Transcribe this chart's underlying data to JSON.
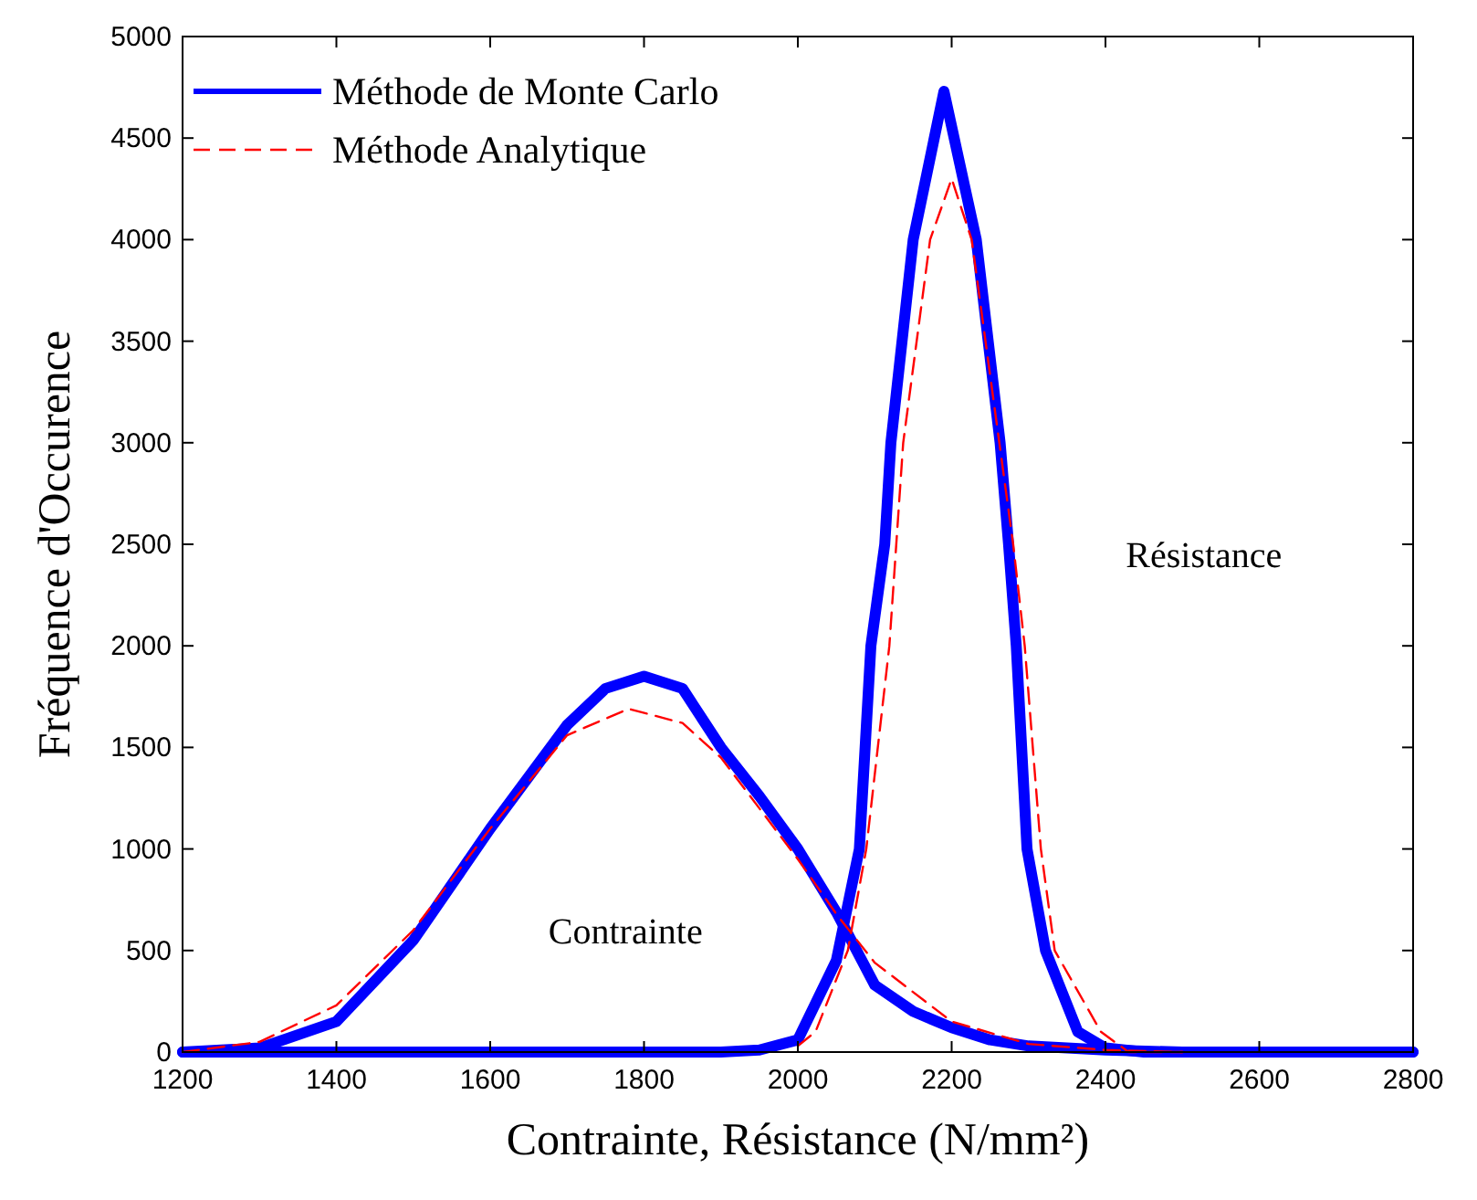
{
  "chart_data": {
    "type": "line",
    "xlabel": "Contrainte, Résistance (N/mm²)",
    "ylabel": "Fréquence d'Occurence",
    "xlim": [
      1200,
      2800
    ],
    "ylim": [
      0,
      5000
    ],
    "xticks": [
      1200,
      1400,
      1600,
      1800,
      2000,
      2200,
      2400,
      2600,
      2800
    ],
    "yticks": [
      0,
      500,
      1000,
      1500,
      2000,
      2500,
      3000,
      3500,
      4000,
      4500,
      5000
    ],
    "grid": false,
    "legend": "top left",
    "marker": "none",
    "annotations": [
      "Contrainte",
      "Résistance"
    ],
    "series": [
      {
        "name": "Méthode de Monte Carlo",
        "color": "#0000ff",
        "line_style": "solid",
        "x": [
          1200,
          1300,
          1400,
          1500,
          1600,
          1700,
          1750,
          1800,
          1850,
          1900,
          1950,
          2000,
          2050,
          2100,
          2150,
          2200,
          2250,
          2300,
          2400,
          2500,
          2800
        ],
        "values": [
          0,
          20,
          150,
          550,
          1100,
          1610,
          1790,
          1850,
          1790,
          1500,
          1260,
          1000,
          690,
          330,
          200,
          120,
          60,
          30,
          10,
          0,
          0
        ]
      },
      {
        "color": "#0000ff",
        "line_style": "solid",
        "x": [
          1200,
          1900,
          1950,
          2000,
          2050,
          2080,
          2095,
          2113,
          2121,
          2150,
          2190,
          2232,
          2263,
          2274,
          2284,
          2298,
          2322,
          2364,
          2400,
          2450,
          2800
        ],
        "values": [
          0,
          0,
          10,
          60,
          450,
          1000,
          2000,
          2500,
          3000,
          4000,
          4730,
          4000,
          3000,
          2500,
          2000,
          1000,
          500,
          100,
          20,
          0,
          0
        ]
      },
      {
        "name": "Méthode Analytique",
        "color": "#ff0000",
        "line_style": "dashed",
        "x": [
          1200,
          1300,
          1400,
          1500,
          1600,
          1700,
          1780,
          1850,
          1900,
          2000,
          2050,
          2100,
          2200,
          2300,
          2400,
          2500
        ],
        "values": [
          0,
          50,
          230,
          600,
          1100,
          1560,
          1690,
          1620,
          1450,
          950,
          680,
          440,
          150,
          40,
          10,
          0
        ]
      },
      {
        "color": "#ff0000",
        "line_style": "dashed",
        "x": [
          2000,
          2023,
          2065,
          2089,
          2119,
          2137,
          2172,
          2200,
          2226,
          2262,
          2280,
          2295,
          2316,
          2334,
          2394,
          2430,
          2500
        ],
        "values": [
          30,
          100,
          500,
          1000,
          2000,
          3000,
          4000,
          4300,
          4000,
          3000,
          2500,
          2000,
          1000,
          500,
          100,
          0,
          0
        ]
      }
    ]
  }
}
